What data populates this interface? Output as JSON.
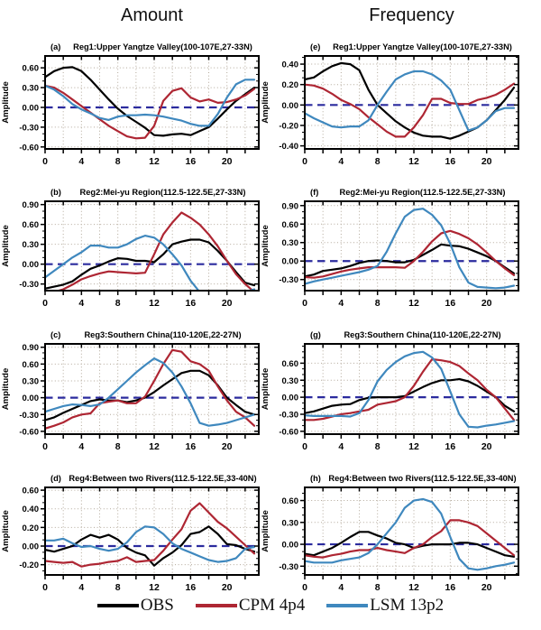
{
  "headers": {
    "amount": "Amount",
    "frequency": "Frequency"
  },
  "axes": {
    "y_axis_label": "Amplitude",
    "hours": [
      0,
      1,
      2,
      3,
      4,
      5,
      6,
      7,
      8,
      9,
      10,
      11,
      12,
      13,
      14,
      15,
      16,
      17,
      18,
      19,
      20,
      21,
      22,
      23
    ],
    "xlim": [
      0,
      23.5
    ],
    "x_major_ticks": [
      0,
      4,
      8,
      12,
      16,
      20
    ],
    "x_minor_step": 2
  },
  "colors": {
    "obs": "#000000",
    "cpm_4p4": "#ae2633",
    "lsm_13p2": "#3f88be",
    "zero_line": "#2b2b9e",
    "grid": "#b3a99b",
    "axis": "#000000"
  },
  "legend": {
    "items": [
      {
        "label": "OBS",
        "color": "#000000"
      },
      {
        "label": "CPM 4p4",
        "color": "#ae2633"
      },
      {
        "label": "LSM 13p2",
        "color": "#3f88be"
      }
    ]
  },
  "chart_data": [
    {
      "letter": "(a)",
      "column": "Amount",
      "type": "line",
      "title": "Reg1:Upper Yangtze Valley(100-107E,27-33N)",
      "ylim": [
        -0.63,
        0.78
      ],
      "yticks": [
        0.6,
        0.3,
        0.0,
        -0.3,
        -0.6
      ],
      "series": [
        {
          "name": "OBS",
          "color": "#000000",
          "values": [
            0.46,
            0.55,
            0.6,
            0.61,
            0.55,
            0.42,
            0.27,
            0.12,
            -0.02,
            -0.13,
            -0.22,
            -0.31,
            -0.42,
            -0.43,
            -0.41,
            -0.4,
            -0.42,
            -0.36,
            -0.3,
            -0.17,
            -0.03,
            0.1,
            0.2,
            0.3
          ]
        },
        {
          "name": "CPM 4p4",
          "color": "#ae2633",
          "values": [
            0.33,
            0.3,
            0.22,
            0.12,
            0.02,
            -0.08,
            -0.18,
            -0.28,
            -0.36,
            -0.44,
            -0.47,
            -0.46,
            -0.28,
            0.1,
            0.25,
            0.29,
            0.15,
            0.09,
            0.12,
            0.07,
            0.08,
            0.12,
            0.18,
            0.28
          ]
        },
        {
          "name": "LSM 13p2",
          "color": "#3f88be",
          "values": [
            0.33,
            0.27,
            0.17,
            0.05,
            -0.03,
            -0.09,
            -0.16,
            -0.19,
            -0.14,
            -0.12,
            -0.12,
            -0.11,
            -0.12,
            -0.14,
            -0.17,
            -0.2,
            -0.25,
            -0.28,
            -0.28,
            -0.1,
            0.15,
            0.35,
            0.42,
            0.42
          ]
        }
      ]
    },
    {
      "letter": "(e)",
      "column": "Frequency",
      "type": "line",
      "title": "Reg1:Upper Yangtze Valley(100-107E,27-33N)",
      "ylim": [
        -0.43,
        0.48
      ],
      "yticks": [
        0.4,
        0.2,
        0.0,
        -0.2,
        -0.4
      ],
      "series": [
        {
          "name": "OBS",
          "color": "#000000",
          "values": [
            0.25,
            0.27,
            0.33,
            0.38,
            0.41,
            0.4,
            0.34,
            0.15,
            0.0,
            -0.08,
            -0.16,
            -0.22,
            -0.27,
            -0.3,
            -0.31,
            -0.31,
            -0.33,
            -0.3,
            -0.26,
            -0.22,
            -0.15,
            -0.05,
            0.05,
            0.17
          ]
        },
        {
          "name": "CPM 4p4",
          "color": "#ae2633",
          "values": [
            0.2,
            0.19,
            0.16,
            0.11,
            0.05,
            0.01,
            -0.04,
            -0.12,
            -0.19,
            -0.26,
            -0.31,
            -0.31,
            -0.22,
            -0.1,
            0.06,
            0.06,
            0.02,
            0.01,
            0.01,
            0.05,
            0.07,
            0.1,
            0.15,
            0.21
          ]
        },
        {
          "name": "LSM 13p2",
          "color": "#3f88be",
          "values": [
            -0.08,
            -0.13,
            -0.17,
            -0.21,
            -0.22,
            -0.21,
            -0.21,
            -0.15,
            0.0,
            0.13,
            0.25,
            0.3,
            0.33,
            0.33,
            0.3,
            0.24,
            0.15,
            -0.05,
            -0.25,
            -0.22,
            -0.15,
            -0.06,
            -0.03,
            -0.03
          ]
        }
      ]
    },
    {
      "letter": "(b)",
      "column": "Amount",
      "type": "line",
      "title": "Reg2:Mei-yu Region(112.5-122.5E,27-33N)",
      "ylim": [
        -0.4,
        0.95
      ],
      "yticks": [
        0.9,
        0.6,
        0.3,
        0.0,
        -0.3
      ],
      "series": [
        {
          "name": "OBS",
          "color": "#000000",
          "values": [
            -0.37,
            -0.34,
            -0.31,
            -0.26,
            -0.16,
            -0.07,
            -0.02,
            0.04,
            0.09,
            0.08,
            0.05,
            0.05,
            0.03,
            0.15,
            0.3,
            0.34,
            0.37,
            0.37,
            0.33,
            0.2,
            0.05,
            -0.12,
            -0.28,
            -0.32
          ]
        },
        {
          "name": "CPM 4p4",
          "color": "#ae2633",
          "values": [
            -0.43,
            -0.42,
            -0.38,
            -0.31,
            -0.23,
            -0.18,
            -0.14,
            -0.11,
            -0.12,
            -0.13,
            -0.14,
            -0.13,
            0.15,
            0.45,
            0.63,
            0.78,
            0.7,
            0.6,
            0.45,
            0.27,
            0.05,
            -0.15,
            -0.3,
            -0.42
          ]
        },
        {
          "name": "LSM 13p2",
          "color": "#3f88be",
          "values": [
            -0.2,
            -0.1,
            0.0,
            0.1,
            0.18,
            0.28,
            0.28,
            0.25,
            0.25,
            0.3,
            0.38,
            0.43,
            0.4,
            0.3,
            0.15,
            -0.02,
            -0.25,
            -0.42,
            -0.5,
            -0.52,
            -0.5,
            -0.46,
            -0.42,
            -0.38
          ]
        }
      ]
    },
    {
      "letter": "(f)",
      "column": "Frequency",
      "type": "line",
      "title": "Reg2:Mei-yu Region(112.5-122.5E,27-33N)",
      "ylim": [
        -0.48,
        0.97
      ],
      "yticks": [
        0.9,
        0.6,
        0.3,
        0.0,
        -0.3
      ],
      "series": [
        {
          "name": "OBS",
          "color": "#000000",
          "values": [
            -0.25,
            -0.22,
            -0.16,
            -0.14,
            -0.12,
            -0.08,
            -0.03,
            0.0,
            0.01,
            0.0,
            -0.02,
            -0.02,
            0.02,
            0.1,
            0.18,
            0.27,
            0.25,
            0.24,
            0.2,
            0.14,
            0.08,
            0.0,
            -0.1,
            -0.2
          ]
        },
        {
          "name": "CPM 4p4",
          "color": "#ae2633",
          "values": [
            -0.26,
            -0.27,
            -0.25,
            -0.21,
            -0.17,
            -0.14,
            -0.12,
            -0.1,
            -0.1,
            -0.1,
            -0.1,
            -0.11,
            0.0,
            0.15,
            0.32,
            0.45,
            0.49,
            0.44,
            0.37,
            0.27,
            0.14,
            0.0,
            -0.12,
            -0.23
          ]
        },
        {
          "name": "LSM 13p2",
          "color": "#3f88be",
          "values": [
            -0.37,
            -0.33,
            -0.3,
            -0.27,
            -0.24,
            -0.21,
            -0.18,
            -0.14,
            -0.08,
            0.15,
            0.45,
            0.72,
            0.83,
            0.85,
            0.75,
            0.58,
            0.28,
            -0.1,
            -0.35,
            -0.42,
            -0.43,
            -0.44,
            -0.43,
            -0.4
          ]
        }
      ]
    },
    {
      "letter": "(c)",
      "column": "Amount",
      "type": "line",
      "title": "Reg3:Southern China(110-120E,22-27N)",
      "ylim": [
        -0.65,
        0.96
      ],
      "yticks": [
        0.9,
        0.6,
        0.3,
        0.0,
        -0.3,
        -0.6
      ],
      "series": [
        {
          "name": "OBS",
          "color": "#000000",
          "values": [
            -0.4,
            -0.35,
            -0.27,
            -0.2,
            -0.13,
            -0.06,
            -0.03,
            -0.05,
            -0.05,
            -0.08,
            -0.05,
            0.0,
            0.1,
            0.22,
            0.33,
            0.44,
            0.48,
            0.48,
            0.4,
            0.22,
            0.0,
            -0.13,
            -0.25,
            -0.3
          ]
        },
        {
          "name": "CPM 4p4",
          "color": "#ae2633",
          "values": [
            -0.55,
            -0.5,
            -0.44,
            -0.35,
            -0.3,
            -0.28,
            -0.1,
            -0.07,
            -0.05,
            -0.1,
            -0.1,
            0.02,
            0.3,
            0.6,
            0.85,
            0.82,
            0.65,
            0.6,
            0.48,
            0.2,
            -0.05,
            -0.25,
            -0.35,
            -0.5
          ]
        },
        {
          "name": "LSM 13p2",
          "color": "#3f88be",
          "values": [
            -0.25,
            -0.2,
            -0.15,
            -0.12,
            -0.13,
            -0.15,
            -0.12,
            0.0,
            0.15,
            0.3,
            0.45,
            0.58,
            0.7,
            0.62,
            0.45,
            0.2,
            -0.1,
            -0.45,
            -0.5,
            -0.48,
            -0.45,
            -0.4,
            -0.35,
            -0.3
          ]
        }
      ]
    },
    {
      "letter": "(g)",
      "column": "Frequency",
      "type": "line",
      "title": "Reg3:Southern China(110-120E,22-27N)",
      "ylim": [
        -0.65,
        0.94
      ],
      "yticks": [
        0.6,
        0.3,
        0.0,
        -0.3,
        -0.6
      ],
      "series": [
        {
          "name": "OBS",
          "color": "#000000",
          "values": [
            -0.28,
            -0.25,
            -0.2,
            -0.15,
            -0.13,
            -0.12,
            -0.05,
            -0.01,
            0.0,
            0.0,
            0.0,
            0.02,
            0.1,
            0.18,
            0.25,
            0.3,
            0.3,
            0.32,
            0.28,
            0.2,
            0.1,
            0.0,
            -0.15,
            -0.25
          ]
        },
        {
          "name": "CPM 4p4",
          "color": "#ae2633",
          "values": [
            -0.4,
            -0.4,
            -0.38,
            -0.34,
            -0.3,
            -0.28,
            -0.25,
            -0.22,
            -0.13,
            -0.1,
            -0.07,
            0.0,
            0.2,
            0.45,
            0.67,
            0.65,
            0.62,
            0.55,
            0.42,
            0.3,
            0.13,
            0.0,
            -0.2,
            -0.4
          ]
        },
        {
          "name": "LSM 13p2",
          "color": "#3f88be",
          "values": [
            -0.32,
            -0.33,
            -0.33,
            -0.33,
            -0.33,
            -0.34,
            -0.28,
            -0.05,
            0.28,
            0.48,
            0.62,
            0.72,
            0.78,
            0.8,
            0.7,
            0.5,
            0.1,
            -0.3,
            -0.52,
            -0.53,
            -0.5,
            -0.48,
            -0.45,
            -0.42
          ]
        }
      ]
    },
    {
      "letter": "(d)",
      "column": "Amount",
      "type": "line",
      "title": "Reg4:Between two Rivers(112.5-122.5E,33-40N)",
      "ylim": [
        -0.31,
        0.63
      ],
      "yticks": [
        0.6,
        0.4,
        0.2,
        0.0,
        -0.2
      ],
      "series": [
        {
          "name": "OBS",
          "color": "#000000",
          "values": [
            -0.04,
            -0.06,
            -0.03,
            0.0,
            0.07,
            0.12,
            0.09,
            0.12,
            0.07,
            -0.02,
            -0.07,
            -0.1,
            -0.21,
            -0.13,
            -0.07,
            0.01,
            0.13,
            0.15,
            0.21,
            0.13,
            0.02,
            0.01,
            -0.03,
            -0.06
          ]
        },
        {
          "name": "CPM 4p4",
          "color": "#ae2633",
          "values": [
            -0.16,
            -0.17,
            -0.18,
            -0.17,
            -0.22,
            -0.2,
            -0.19,
            -0.17,
            -0.16,
            -0.12,
            -0.17,
            -0.16,
            -0.15,
            -0.05,
            0.07,
            0.18,
            0.38,
            0.46,
            0.36,
            0.26,
            0.19,
            0.1,
            0.01,
            -0.08
          ]
        },
        {
          "name": "LSM 13p2",
          "color": "#3f88be",
          "values": [
            0.06,
            0.06,
            0.08,
            0.03,
            -0.01,
            0.0,
            -0.03,
            -0.05,
            -0.03,
            0.04,
            0.15,
            0.21,
            0.2,
            0.13,
            0.03,
            -0.03,
            -0.07,
            -0.11,
            -0.15,
            -0.17,
            -0.16,
            -0.13,
            -0.03,
            -0.01
          ]
        }
      ]
    },
    {
      "letter": "(h)",
      "column": "Frequency",
      "type": "line",
      "title": "Reg4:Between two Rivers(112.5-122.5E,33-40N)",
      "ylim": [
        -0.42,
        0.78
      ],
      "yticks": [
        0.6,
        0.3,
        0.0,
        -0.3
      ],
      "series": [
        {
          "name": "OBS",
          "color": "#000000",
          "values": [
            -0.13,
            -0.15,
            -0.1,
            -0.05,
            0.02,
            0.1,
            0.17,
            0.17,
            0.12,
            0.08,
            0.02,
            0.0,
            -0.05,
            -0.02,
            0.0,
            0.0,
            0.0,
            0.02,
            0.02,
            0.0,
            -0.05,
            -0.1,
            -0.15,
            -0.17
          ]
        },
        {
          "name": "CPM 4p4",
          "color": "#ae2633",
          "values": [
            -0.15,
            -0.17,
            -0.18,
            -0.15,
            -0.13,
            -0.1,
            -0.08,
            -0.08,
            -0.05,
            -0.08,
            -0.1,
            -0.12,
            -0.05,
            0.0,
            0.1,
            0.18,
            0.33,
            0.33,
            0.3,
            0.25,
            0.15,
            0.05,
            -0.05,
            -0.15
          ]
        },
        {
          "name": "LSM 13p2",
          "color": "#3f88be",
          "values": [
            -0.23,
            -0.25,
            -0.25,
            -0.25,
            -0.22,
            -0.2,
            -0.18,
            -0.12,
            0.0,
            0.15,
            0.3,
            0.5,
            0.6,
            0.62,
            0.58,
            0.42,
            0.1,
            -0.2,
            -0.33,
            -0.35,
            -0.33,
            -0.3,
            -0.28,
            -0.25
          ]
        }
      ]
    }
  ]
}
